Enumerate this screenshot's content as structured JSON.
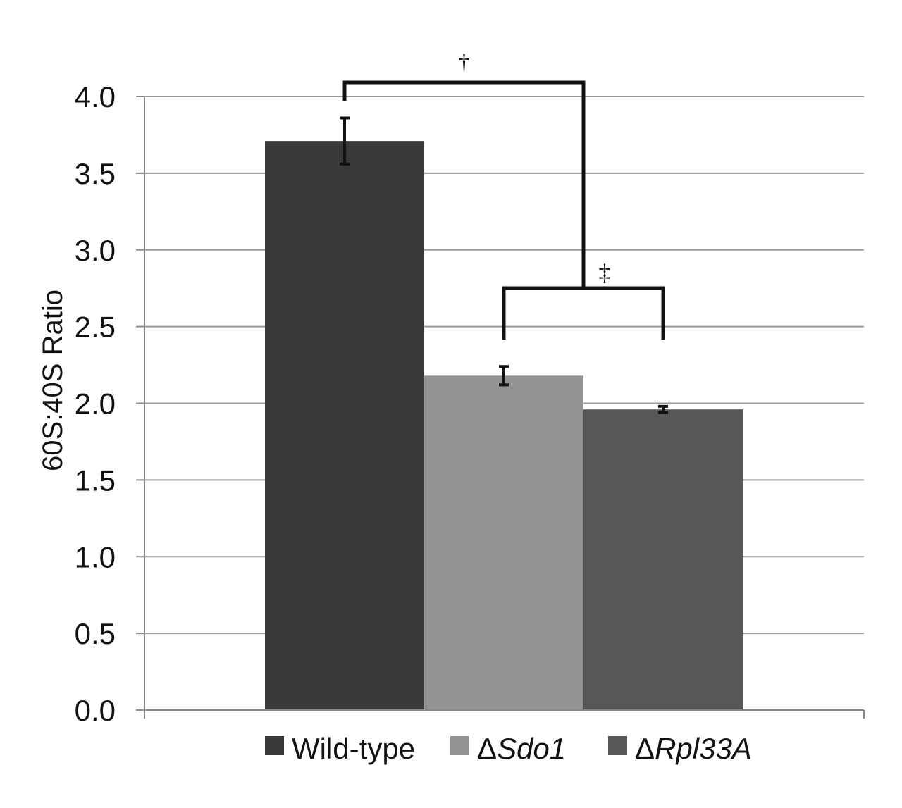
{
  "chart_data": {
    "type": "bar",
    "title": "",
    "xlabel": "",
    "ylabel": "60S:40S Ratio",
    "ylim": [
      0,
      4
    ],
    "yticks": [
      "0.0",
      "0.5",
      "1.0",
      "1.5",
      "2.0",
      "2.5",
      "3.0",
      "3.5",
      "4.0"
    ],
    "grid": true,
    "legend_position": "bottom",
    "series": [
      {
        "name": "Wild-type",
        "legend_prefix": "",
        "legend_main": "Wild-type",
        "italic": false,
        "value": 3.71,
        "error": 0.15,
        "color": "#3a3a3a"
      },
      {
        "name": "ΔSdo1",
        "legend_prefix": "Δ",
        "legend_main": "Sdo1",
        "italic": true,
        "value": 2.18,
        "error": 0.06,
        "color": "#939393"
      },
      {
        "name": "ΔRpl33A",
        "legend_prefix": "Δ",
        "legend_main": "Rpl33A",
        "italic": true,
        "value": 1.96,
        "error": 0.02,
        "color": "#575757"
      }
    ],
    "annotations": [
      {
        "type": "bracket",
        "label": "†",
        "from": "Wild-type",
        "to": "ΔSdo1/ΔRpl33A group"
      },
      {
        "type": "bracket",
        "label": "‡",
        "from": "ΔSdo1",
        "to": "ΔRpl33A"
      }
    ]
  }
}
